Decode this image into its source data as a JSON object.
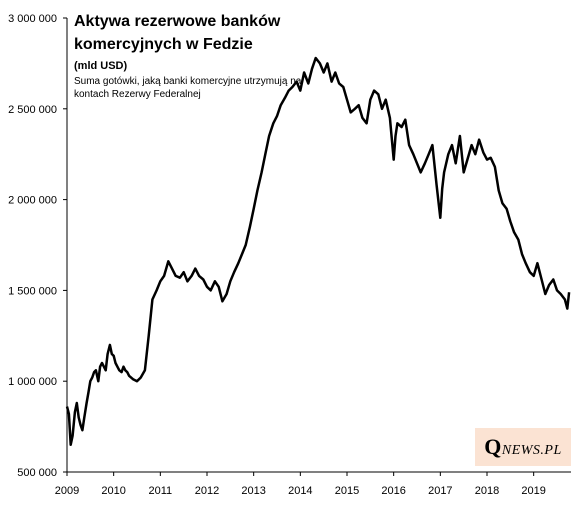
{
  "chart_data": {
    "type": "line",
    "title": "Aktywa rezerwowe banków komercyjnych w Fedzie",
    "unit": "(mld USD)",
    "subtitle": "Suma gotówki, jaką banki komercyjne utrzymują na kontach Rezerwy Federalnej",
    "xlabel": "",
    "ylabel": "",
    "xlim": [
      2009.0,
      2019.8
    ],
    "ylim": [
      500000,
      3000000
    ],
    "y_ticks": [
      500000,
      1000000,
      1500000,
      2000000,
      2500000,
      3000000
    ],
    "y_tick_labels": [
      "500 000",
      "1 000 000",
      "1 500 000",
      "2 000 000",
      "2 500 000",
      "3 000 000"
    ],
    "x_ticks": [
      2009,
      2010,
      2011,
      2012,
      2013,
      2014,
      2015,
      2016,
      2017,
      2018,
      2019
    ],
    "x_tick_labels": [
      "2009",
      "2010",
      "2011",
      "2012",
      "2013",
      "2014",
      "2015",
      "2016",
      "2017",
      "2018",
      "2019"
    ],
    "grid": false,
    "legend": "none",
    "line_color": "#000000",
    "series": [
      {
        "x": [
          2009.0,
          2009.04,
          2009.08,
          2009.12,
          2009.17,
          2009.21,
          2009.25,
          2009.29,
          2009.33,
          2009.37,
          2009.42,
          2009.46,
          2009.5,
          2009.54,
          2009.58,
          2009.62,
          2009.67,
          2009.71,
          2009.75,
          2009.79,
          2009.83,
          2009.87,
          2009.92,
          2009.96,
          2010.0,
          2010.04,
          2010.08,
          2010.12,
          2010.17,
          2010.21,
          2010.25,
          2010.29,
          2010.33,
          2010.42,
          2010.5,
          2010.58,
          2010.67,
          2010.75,
          2010.83,
          2010.92,
          2011.0,
          2011.08,
          2011.17,
          2011.25,
          2011.33,
          2011.42,
          2011.5,
          2011.58,
          2011.67,
          2011.75,
          2011.83,
          2011.92,
          2012.0,
          2012.08,
          2012.17,
          2012.25,
          2012.33,
          2012.42,
          2012.5,
          2012.58,
          2012.67,
          2012.75,
          2012.83,
          2012.92,
          2013.0,
          2013.08,
          2013.17,
          2013.25,
          2013.33,
          2013.42,
          2013.5,
          2013.58,
          2013.67,
          2013.75,
          2013.83,
          2013.92,
          2014.0,
          2014.08,
          2014.17,
          2014.25,
          2014.33,
          2014.42,
          2014.5,
          2014.58,
          2014.67,
          2014.75,
          2014.83,
          2014.92,
          2015.0,
          2015.08,
          2015.17,
          2015.25,
          2015.33,
          2015.42,
          2015.5,
          2015.58,
          2015.67,
          2015.75,
          2015.83,
          2015.92,
          2016.0,
          2016.04,
          2016.08,
          2016.17,
          2016.25,
          2016.33,
          2016.42,
          2016.5,
          2016.58,
          2016.67,
          2016.75,
          2016.83,
          2016.92,
          2017.0,
          2017.04,
          2017.08,
          2017.17,
          2017.25,
          2017.33,
          2017.42,
          2017.5,
          2017.58,
          2017.67,
          2017.75,
          2017.83,
          2017.92,
          2018.0,
          2018.08,
          2018.17,
          2018.25,
          2018.33,
          2018.42,
          2018.5,
          2018.58,
          2018.67,
          2018.75,
          2018.83,
          2018.92,
          2019.0,
          2019.08,
          2019.17,
          2019.25,
          2019.33,
          2019.42,
          2019.5,
          2019.58,
          2019.67,
          2019.72,
          2019.76
        ],
        "values": [
          860000,
          820000,
          650000,
          700000,
          830000,
          880000,
          800000,
          760000,
          730000,
          800000,
          880000,
          940000,
          1000000,
          1020000,
          1050000,
          1060000,
          1000000,
          1080000,
          1100000,
          1080000,
          1060000,
          1150000,
          1200000,
          1150000,
          1140000,
          1100000,
          1080000,
          1060000,
          1050000,
          1080000,
          1060000,
          1050000,
          1030000,
          1010000,
          1000000,
          1020000,
          1060000,
          1250000,
          1450000,
          1500000,
          1550000,
          1580000,
          1660000,
          1620000,
          1580000,
          1570000,
          1600000,
          1550000,
          1580000,
          1620000,
          1580000,
          1560000,
          1520000,
          1500000,
          1550000,
          1520000,
          1440000,
          1480000,
          1550000,
          1600000,
          1650000,
          1700000,
          1750000,
          1850000,
          1950000,
          2050000,
          2150000,
          2250000,
          2350000,
          2420000,
          2460000,
          2520000,
          2560000,
          2600000,
          2620000,
          2650000,
          2600000,
          2700000,
          2640000,
          2720000,
          2780000,
          2750000,
          2700000,
          2750000,
          2650000,
          2700000,
          2640000,
          2620000,
          2550000,
          2480000,
          2500000,
          2520000,
          2450000,
          2420000,
          2550000,
          2600000,
          2580000,
          2500000,
          2550000,
          2450000,
          2220000,
          2350000,
          2420000,
          2400000,
          2440000,
          2300000,
          2250000,
          2200000,
          2150000,
          2200000,
          2250000,
          2300000,
          2080000,
          1900000,
          2060000,
          2150000,
          2250000,
          2300000,
          2200000,
          2350000,
          2150000,
          2220000,
          2300000,
          2250000,
          2330000,
          2260000,
          2220000,
          2230000,
          2180000,
          2050000,
          1980000,
          1950000,
          1880000,
          1820000,
          1780000,
          1700000,
          1650000,
          1600000,
          1580000,
          1650000,
          1560000,
          1480000,
          1530000,
          1560000,
          1500000,
          1480000,
          1450000,
          1400000,
          1490000
        ]
      }
    ]
  },
  "logo": {
    "initial": "Q",
    "rest": "NEWS.PL"
  }
}
